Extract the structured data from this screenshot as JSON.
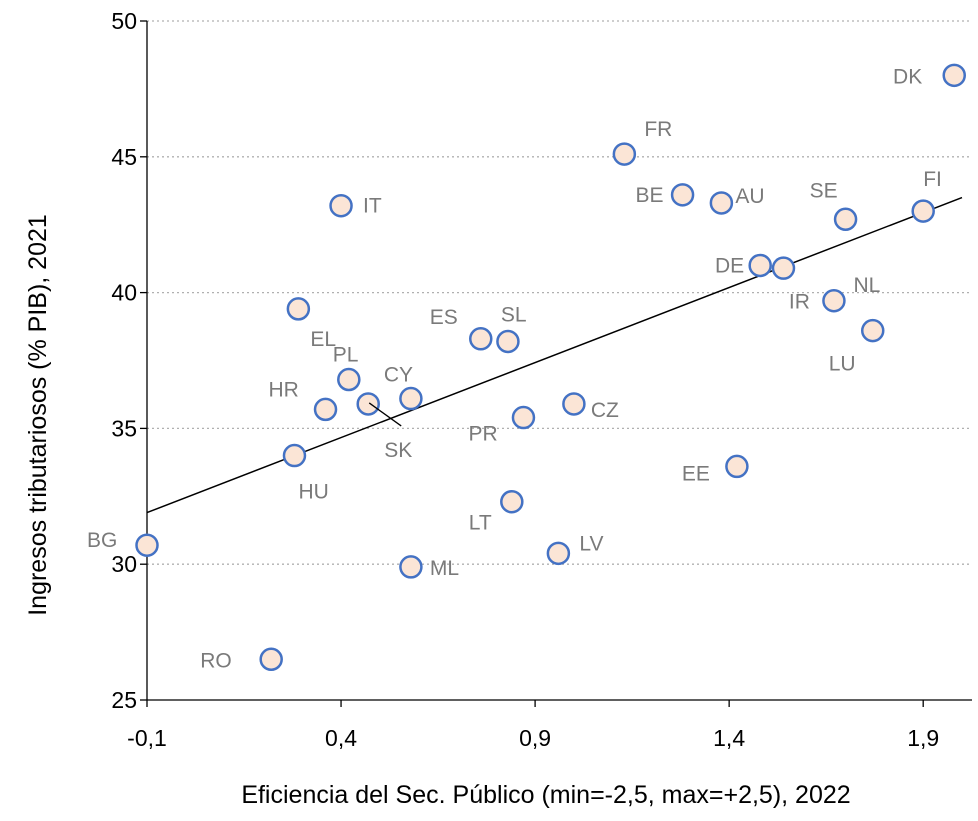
{
  "chart_data": {
    "type": "scatter",
    "xlabel": "Eficiencia del Sec. Público (min=-2,5, max=+2,5), 2022",
    "ylabel": "Ingresos tributariosos (% PIB), 2021",
    "xlim": [
      -0.1,
      2.0
    ],
    "ylim": [
      25,
      50
    ],
    "x_ticks": [
      -0.1,
      0.4,
      0.9,
      1.4,
      1.9
    ],
    "x_tick_labels": [
      "-0,1",
      "0,4",
      "0,9",
      "1,4",
      "1,9"
    ],
    "y_ticks": [
      25,
      30,
      35,
      40,
      45,
      50
    ],
    "y_tick_labels": [
      "25",
      "30",
      "35",
      "40",
      "45",
      "50"
    ],
    "grid": "horizontal dotted",
    "colors": {
      "marker_fill": "#fbe5d6",
      "marker_edge": "#4472c4",
      "label": "#7a7a7a",
      "trend": "#000000",
      "grid": "#b0b0b0"
    },
    "trendline": {
      "x": [
        -0.1,
        2.0
      ],
      "y": [
        31.9,
        43.5
      ]
    },
    "points": [
      {
        "label": "DK",
        "x": 1.98,
        "y": 48.0
      },
      {
        "label": "FR",
        "x": 1.13,
        "y": 45.1
      },
      {
        "label": "IT",
        "x": 0.4,
        "y": 43.2
      },
      {
        "label": "BE",
        "x": 1.28,
        "y": 43.6
      },
      {
        "label": "AU",
        "x": 1.38,
        "y": 43.3
      },
      {
        "label": "SE",
        "x": 1.7,
        "y": 42.7
      },
      {
        "label": "FI",
        "x": 1.9,
        "y": 43.0
      },
      {
        "label": "DE",
        "x": 1.48,
        "y": 41.0
      },
      {
        "label": "NL",
        "x": 1.54,
        "y": 40.9
      },
      {
        "label": "IR",
        "x": 1.67,
        "y": 39.7
      },
      {
        "label": "LU",
        "x": 1.77,
        "y": 38.6
      },
      {
        "label": "EL",
        "x": 0.29,
        "y": 39.4
      },
      {
        "label": "ES",
        "x": 0.76,
        "y": 38.3
      },
      {
        "label": "SL",
        "x": 0.83,
        "y": 38.2
      },
      {
        "label": "PL",
        "x": 0.42,
        "y": 36.8
      },
      {
        "label": "CY",
        "x": 0.58,
        "y": 36.1
      },
      {
        "label": "SK",
        "x": 0.47,
        "y": 35.9
      },
      {
        "label": "HR",
        "x": 0.36,
        "y": 35.7
      },
      {
        "label": "CZ",
        "x": 1.0,
        "y": 35.9
      },
      {
        "label": "PR",
        "x": 0.87,
        "y": 35.4
      },
      {
        "label": "HU",
        "x": 0.28,
        "y": 34.0
      },
      {
        "label": "EE",
        "x": 1.42,
        "y": 33.6
      },
      {
        "label": "LT",
        "x": 0.84,
        "y": 32.3
      },
      {
        "label": "LV",
        "x": 0.96,
        "y": 30.4
      },
      {
        "label": "BG",
        "x": -0.1,
        "y": 30.7
      },
      {
        "label": "ML",
        "x": 0.58,
        "y": 29.9
      },
      {
        "label": "RO",
        "x": 0.22,
        "y": 26.5
      }
    ]
  }
}
